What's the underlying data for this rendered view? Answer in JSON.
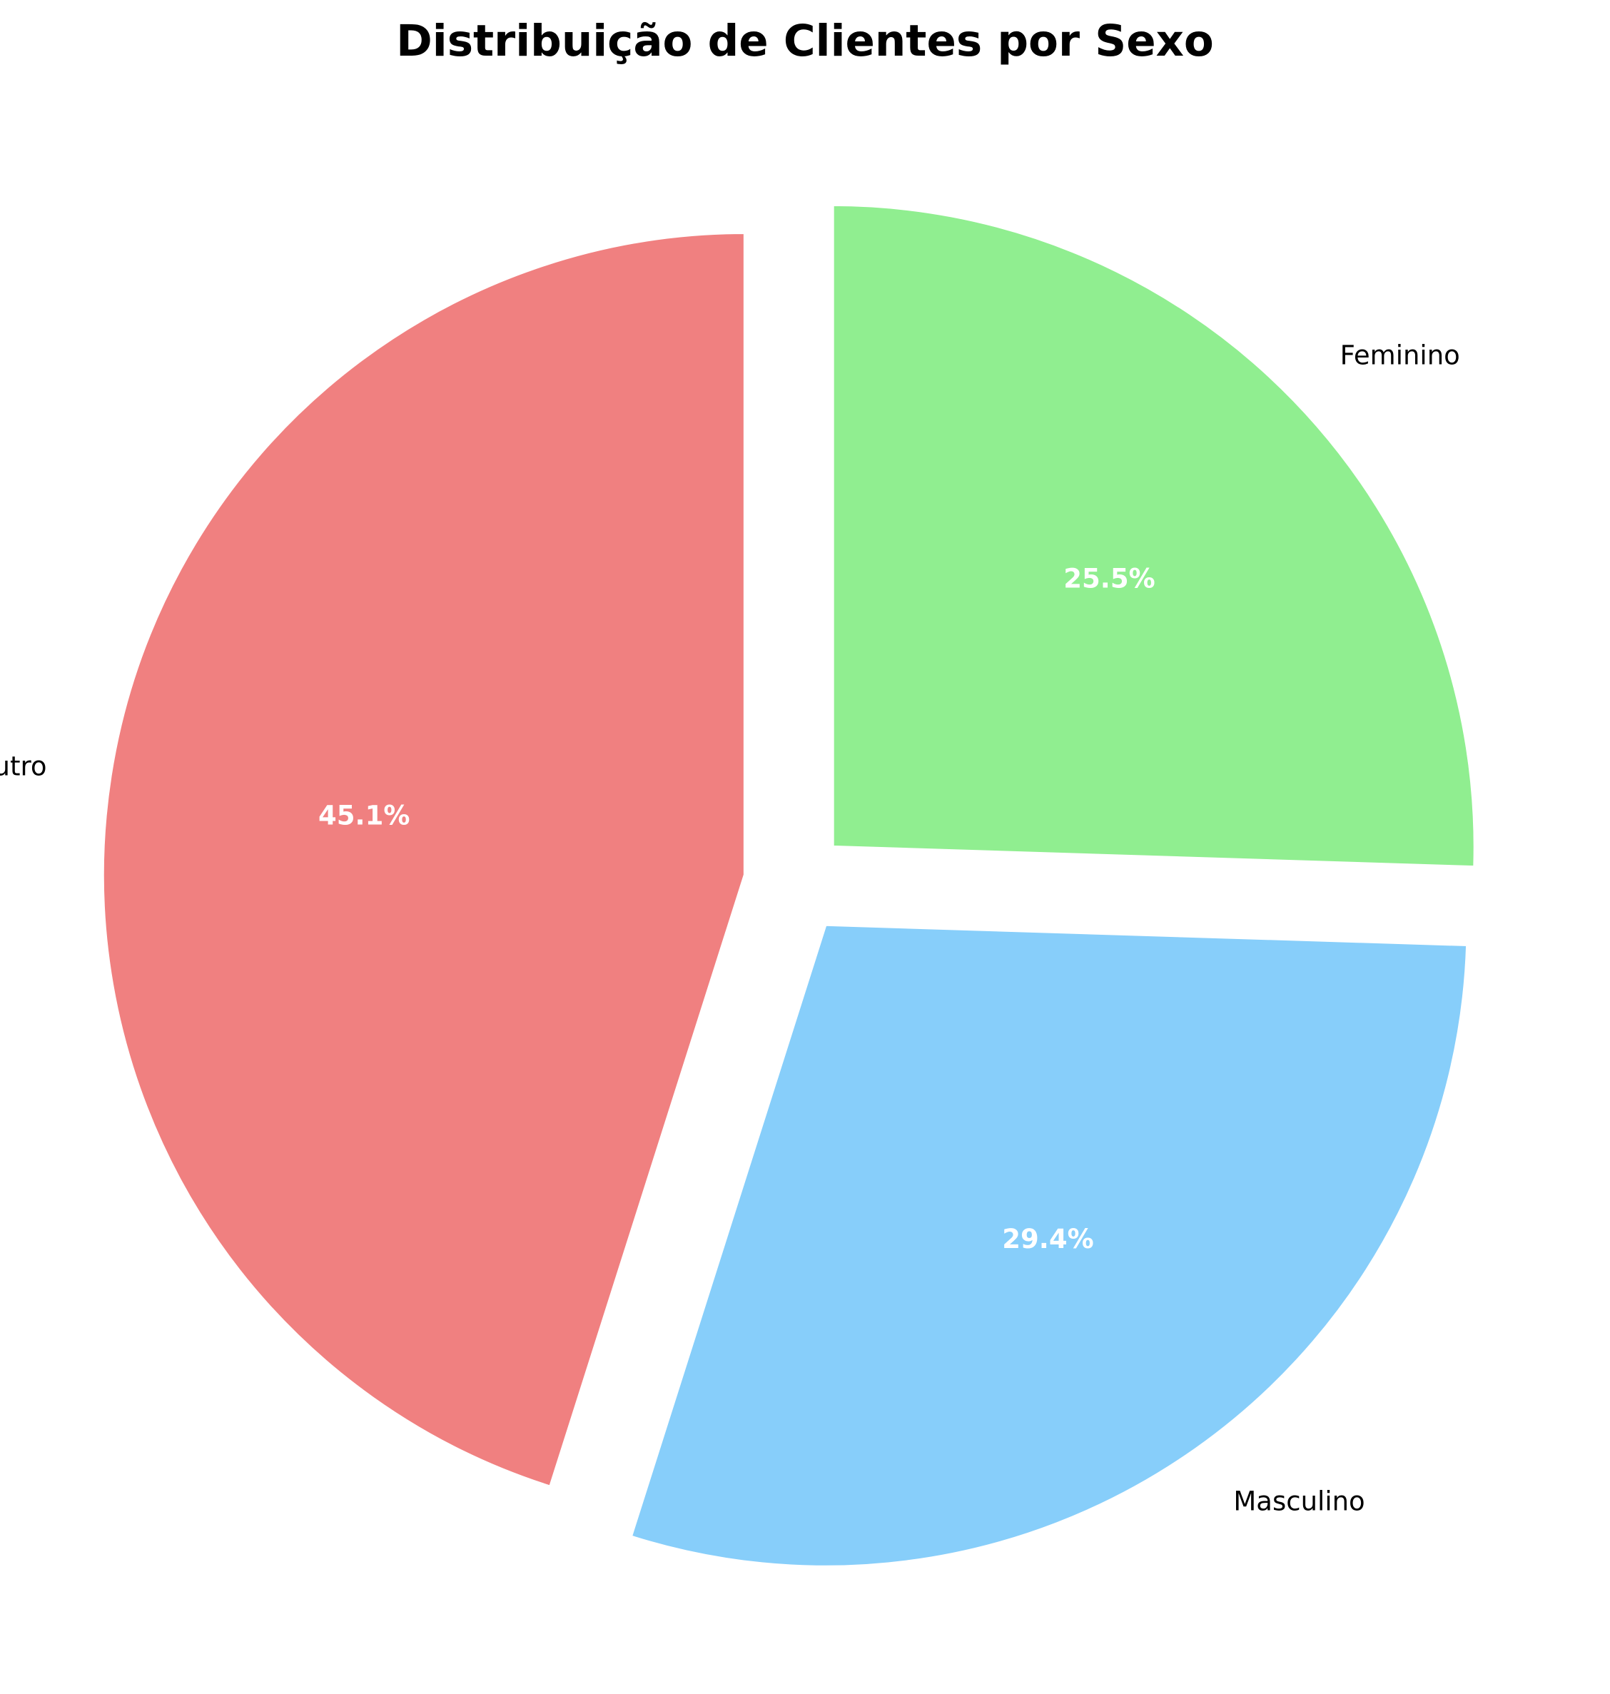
{
  "chart_data": {
    "type": "pie",
    "title": "Distribuição de Clientes por Sexo",
    "slices": [
      {
        "label": "Outro",
        "value": 45.1,
        "pct_label": "45.1%",
        "color": "#F08080",
        "exploded": true
      },
      {
        "label": "Masculino",
        "value": 29.4,
        "pct_label": "29.4%",
        "color": "#87CEFA",
        "exploded": true
      },
      {
        "label": "Feminino",
        "value": 25.5,
        "pct_label": "25.5%",
        "color": "#90EE90",
        "exploded": true
      }
    ],
    "start_angle_deg": 90,
    "direction": "counterclockwise",
    "legend": "none"
  }
}
